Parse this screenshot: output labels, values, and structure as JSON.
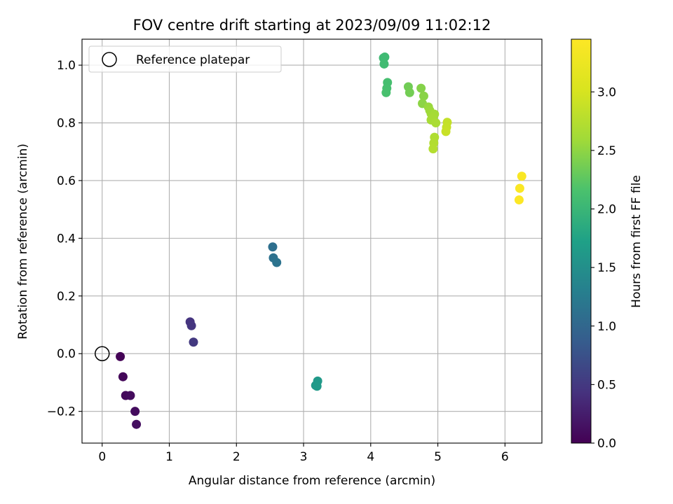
{
  "chart_data": {
    "type": "scatter",
    "title": "FOV centre drift starting at 2023/09/09 11:02:12",
    "xlabel": "Angular distance from reference (arcmin)",
    "ylabel": "Rotation from reference (arcmin)",
    "xlim": [
      -0.3,
      6.55
    ],
    "ylim": [
      -0.31,
      1.09
    ],
    "xticks": [
      0,
      1,
      2,
      3,
      4,
      5,
      6
    ],
    "xtick_labels": [
      "0",
      "1",
      "2",
      "3",
      "4",
      "5",
      "6"
    ],
    "yticks": [
      -0.2,
      0.0,
      0.2,
      0.4,
      0.6,
      0.8,
      1.0
    ],
    "ytick_labels": [
      "−0.2",
      "0.0",
      "0.2",
      "0.4",
      "0.6",
      "0.8",
      "1.0"
    ],
    "grid": true,
    "legend": {
      "placement": "upper-left",
      "entries": [
        "Reference platepar"
      ]
    },
    "reference_point": {
      "x": 0,
      "y": 0,
      "label": "Reference platepar"
    },
    "colorbar": {
      "label": "Hours from first FF file",
      "colormap": "viridis",
      "range": [
        0,
        3.45
      ],
      "ticks": [
        0.0,
        0.5,
        1.0,
        1.5,
        2.0,
        2.5,
        3.0
      ],
      "tick_labels": [
        "0.0",
        "0.5",
        "1.0",
        "1.5",
        "2.0",
        "2.5",
        "3.0"
      ]
    },
    "series": [
      {
        "points": [
          {
            "x": 0.27,
            "y": -0.01,
            "hours": 0.02
          },
          {
            "x": 0.31,
            "y": -0.08,
            "hours": 0.05
          },
          {
            "x": 0.35,
            "y": -0.145,
            "hours": 0.07
          },
          {
            "x": 0.42,
            "y": -0.145,
            "hours": 0.09
          },
          {
            "x": 0.49,
            "y": -0.2,
            "hours": 0.1
          },
          {
            "x": 0.51,
            "y": -0.245,
            "hours": 0.12
          },
          {
            "x": 1.31,
            "y": 0.11,
            "hours": 0.45
          },
          {
            "x": 1.33,
            "y": 0.097,
            "hours": 0.47
          },
          {
            "x": 1.36,
            "y": 0.04,
            "hours": 0.5
          },
          {
            "x": 2.54,
            "y": 0.37,
            "hours": 1.1
          },
          {
            "x": 2.55,
            "y": 0.332,
            "hours": 1.12
          },
          {
            "x": 2.6,
            "y": 0.316,
            "hours": 1.14
          },
          {
            "x": 3.18,
            "y": -0.11,
            "hours": 1.6
          },
          {
            "x": 3.21,
            "y": -0.095,
            "hours": 1.62
          },
          {
            "x": 3.2,
            "y": -0.113,
            "hours": 1.63
          },
          {
            "x": 4.19,
            "y": 1.025,
            "hours": 2.05
          },
          {
            "x": 4.21,
            "y": 1.028,
            "hours": 2.06
          },
          {
            "x": 4.2,
            "y": 1.004,
            "hours": 2.07
          },
          {
            "x": 4.25,
            "y": 0.94,
            "hours": 2.12
          },
          {
            "x": 4.24,
            "y": 0.92,
            "hours": 2.13
          },
          {
            "x": 4.23,
            "y": 0.905,
            "hours": 2.14
          },
          {
            "x": 4.56,
            "y": 0.925,
            "hours": 2.35
          },
          {
            "x": 4.58,
            "y": 0.905,
            "hours": 2.36
          },
          {
            "x": 4.75,
            "y": 0.92,
            "hours": 2.45
          },
          {
            "x": 4.79,
            "y": 0.893,
            "hours": 2.47
          },
          {
            "x": 4.77,
            "y": 0.867,
            "hours": 2.49
          },
          {
            "x": 4.86,
            "y": 0.855,
            "hours": 2.55
          },
          {
            "x": 4.88,
            "y": 0.843,
            "hours": 2.57
          },
          {
            "x": 4.9,
            "y": 0.832,
            "hours": 2.59
          },
          {
            "x": 4.95,
            "y": 0.83,
            "hours": 2.62
          },
          {
            "x": 4.93,
            "y": 0.82,
            "hours": 2.63
          },
          {
            "x": 4.9,
            "y": 0.81,
            "hours": 2.64
          },
          {
            "x": 4.97,
            "y": 0.8,
            "hours": 2.66
          },
          {
            "x": 4.95,
            "y": 0.75,
            "hours": 2.7
          },
          {
            "x": 4.94,
            "y": 0.73,
            "hours": 2.72
          },
          {
            "x": 4.93,
            "y": 0.71,
            "hours": 2.74
          },
          {
            "x": 5.14,
            "y": 0.802,
            "hours": 2.85
          },
          {
            "x": 5.13,
            "y": 0.785,
            "hours": 2.87
          },
          {
            "x": 5.12,
            "y": 0.77,
            "hours": 2.89
          },
          {
            "x": 6.25,
            "y": 0.615,
            "hours": 3.4
          },
          {
            "x": 6.22,
            "y": 0.573,
            "hours": 3.42
          },
          {
            "x": 6.21,
            "y": 0.533,
            "hours": 3.44
          }
        ]
      }
    ]
  }
}
